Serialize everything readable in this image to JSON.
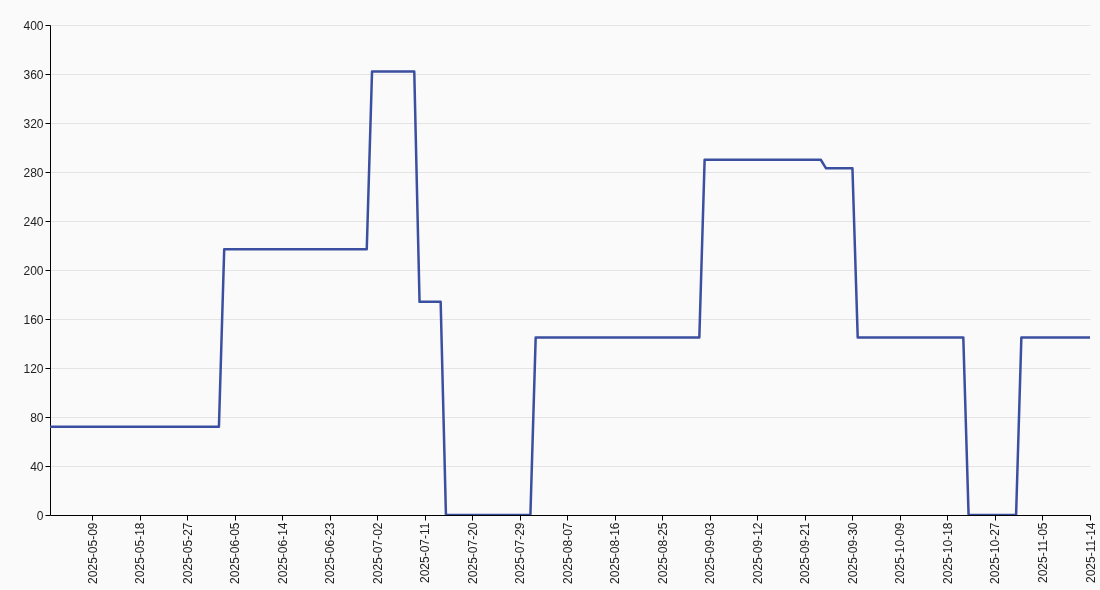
{
  "chart_data": {
    "type": "line",
    "x": [
      "2025-05-01",
      "2025-06-02",
      "2025-06-03",
      "2025-06-30",
      "2025-07-01",
      "2025-07-09",
      "2025-07-10",
      "2025-07-14",
      "2025-07-15",
      "2025-07-31",
      "2025-08-01",
      "2025-09-01",
      "2025-09-02",
      "2025-09-24",
      "2025-09-25",
      "2025-09-30",
      "2025-10-01",
      "2025-10-21",
      "2025-10-22",
      "2025-10-31",
      "2025-11-01",
      "2025-11-14"
    ],
    "series": [
      {
        "color": "#3b4fa0",
        "values": [
          72,
          72,
          217,
          217,
          362,
          362,
          174,
          174,
          0,
          0,
          145,
          145,
          290,
          290,
          283,
          283,
          145,
          145,
          0,
          0,
          145,
          145
        ]
      }
    ],
    "xlim": [
      "2025-05-01",
      "2025-11-14"
    ],
    "xticks": [
      "2025-05-09",
      "2025-05-18",
      "2025-05-27",
      "2025-06-05",
      "2025-06-14",
      "2025-06-23",
      "2025-07-02",
      "2025-07-11",
      "2025-07-20",
      "2025-07-29",
      "2025-08-07",
      "2025-08-16",
      "2025-08-25",
      "2025-09-03",
      "2025-09-12",
      "2025-09-21",
      "2025-09-30",
      "2025-10-09",
      "2025-10-18",
      "2025-10-27",
      "2025-11-05",
      "2025-11-14"
    ],
    "ylim": [
      0,
      400
    ],
    "yticks": [
      0,
      40,
      80,
      120,
      160,
      200,
      240,
      280,
      320,
      360,
      400
    ],
    "grid": "y"
  }
}
